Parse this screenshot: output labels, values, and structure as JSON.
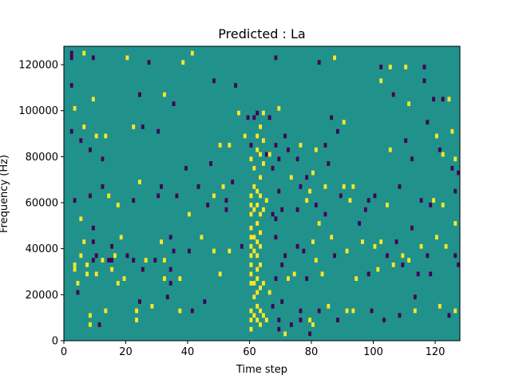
{
  "chart_data": {
    "type": "heatmap",
    "title": "Predicted : La",
    "xlabel": "Time step",
    "ylabel": "Frequency (Hz)",
    "xlim": [
      0,
      128
    ],
    "ylim": [
      0,
      128000
    ],
    "x_ticks": [
      0,
      20,
      40,
      60,
      80,
      100,
      120
    ],
    "y_ticks": [
      0,
      20000,
      40000,
      60000,
      80000,
      100000,
      120000
    ],
    "colormap": "viridis",
    "colors": {
      "background": "#21918c",
      "low": "#440154",
      "high": "#fde725"
    },
    "grid": false,
    "legend": "none",
    "cell_size": {
      "time_steps": 1,
      "frequency_hz": 2000
    },
    "cells": [
      [
        2,
        122000,
        "low"
      ],
      [
        2,
        124000,
        "low"
      ],
      [
        2,
        110000,
        "low"
      ],
      [
        2,
        90000,
        "low"
      ],
      [
        3,
        100000,
        "high"
      ],
      [
        3,
        60000,
        "low"
      ],
      [
        3,
        30000,
        "high"
      ],
      [
        3,
        32000,
        "high"
      ],
      [
        4,
        24000,
        "high"
      ],
      [
        4,
        20000,
        "low"
      ],
      [
        5,
        86000,
        "low"
      ],
      [
        5,
        52000,
        "high"
      ],
      [
        5,
        36000,
        "high"
      ],
      [
        6,
        124000,
        "high"
      ],
      [
        6,
        92000,
        "high"
      ],
      [
        6,
        42000,
        "high"
      ],
      [
        7,
        32000,
        "high"
      ],
      [
        7,
        28000,
        "high"
      ],
      [
        8,
        82000,
        "low"
      ],
      [
        8,
        62000,
        "low"
      ],
      [
        8,
        10000,
        "high"
      ],
      [
        8,
        6000,
        "high"
      ],
      [
        9,
        122000,
        "low"
      ],
      [
        9,
        104000,
        "high"
      ],
      [
        9,
        48000,
        "low"
      ],
      [
        9,
        42000,
        "low"
      ],
      [
        9,
        34000,
        "low"
      ],
      [
        10,
        88000,
        "high"
      ],
      [
        10,
        28000,
        "high"
      ],
      [
        10,
        36000,
        "low"
      ],
      [
        11,
        6000,
        "low"
      ],
      [
        12,
        78000,
        "low"
      ],
      [
        12,
        66000,
        "low"
      ],
      [
        12,
        34000,
        "high"
      ],
      [
        13,
        88000,
        "high"
      ],
      [
        13,
        12000,
        "high"
      ],
      [
        14,
        62000,
        "high"
      ],
      [
        14,
        34000,
        "low"
      ],
      [
        15,
        30000,
        "high"
      ],
      [
        15,
        34000,
        "low"
      ],
      [
        15,
        40000,
        "low"
      ],
      [
        16,
        36000,
        "high"
      ],
      [
        17,
        24000,
        "high"
      ],
      [
        17,
        58000,
        "high"
      ],
      [
        18,
        44000,
        "high"
      ],
      [
        19,
        26000,
        "high"
      ],
      [
        20,
        122000,
        "high"
      ],
      [
        20,
        36000,
        "low"
      ],
      [
        22,
        92000,
        "high"
      ],
      [
        22,
        60000,
        "low"
      ],
      [
        22,
        34000,
        "low"
      ],
      [
        23,
        12000,
        "high"
      ],
      [
        23,
        8000,
        "high"
      ],
      [
        24,
        106000,
        "low"
      ],
      [
        24,
        68000,
        "high"
      ],
      [
        24,
        16000,
        "low"
      ],
      [
        25,
        92000,
        "low"
      ],
      [
        25,
        30000,
        "low"
      ],
      [
        26,
        34000,
        "high"
      ],
      [
        27,
        120000,
        "low"
      ],
      [
        28,
        14000,
        "high"
      ],
      [
        29,
        34000,
        "low"
      ],
      [
        30,
        90000,
        "low"
      ],
      [
        30,
        62000,
        "low"
      ],
      [
        31,
        66000,
        "low"
      ],
      [
        31,
        42000,
        "high"
      ],
      [
        32,
        106000,
        "high"
      ],
      [
        32,
        34000,
        "high"
      ],
      [
        32,
        26000,
        "high"
      ],
      [
        33,
        18000,
        "low"
      ],
      [
        34,
        30000,
        "low"
      ],
      [
        34,
        24000,
        "low"
      ],
      [
        34,
        44000,
        "low"
      ],
      [
        35,
        102000,
        "low"
      ],
      [
        35,
        38000,
        "low"
      ],
      [
        36,
        62000,
        "low"
      ],
      [
        37,
        12000,
        "high"
      ],
      [
        37,
        26000,
        "high"
      ],
      [
        38,
        120000,
        "high"
      ],
      [
        39,
        74000,
        "low"
      ],
      [
        40,
        54000,
        "high"
      ],
      [
        40,
        38000,
        "low"
      ],
      [
        41,
        12000,
        "low"
      ],
      [
        41,
        124000,
        "high"
      ],
      [
        43,
        66000,
        "low"
      ],
      [
        44,
        44000,
        "high"
      ],
      [
        45,
        16000,
        "low"
      ],
      [
        46,
        58000,
        "low"
      ],
      [
        47,
        76000,
        "low"
      ],
      [
        48,
        62000,
        "high"
      ],
      [
        48,
        38000,
        "high"
      ],
      [
        48,
        112000,
        "low"
      ],
      [
        50,
        84000,
        "high"
      ],
      [
        50,
        28000,
        "high"
      ],
      [
        51,
        66000,
        "high"
      ],
      [
        52,
        60000,
        "low"
      ],
      [
        52,
        56000,
        "low"
      ],
      [
        53,
        84000,
        "high"
      ],
      [
        53,
        38000,
        "high"
      ],
      [
        54,
        68000,
        "low"
      ],
      [
        55,
        110000,
        "low"
      ],
      [
        56,
        98000,
        "high"
      ],
      [
        57,
        40000,
        "low"
      ],
      [
        58,
        88000,
        "high"
      ],
      [
        59,
        96000,
        "low"
      ],
      [
        60,
        78000,
        "high"
      ],
      [
        60,
        84000,
        "low"
      ],
      [
        60,
        62000,
        "high"
      ],
      [
        60,
        58000,
        "high"
      ],
      [
        60,
        54000,
        "high"
      ],
      [
        60,
        48000,
        "high"
      ],
      [
        60,
        44000,
        "high"
      ],
      [
        60,
        40000,
        "high"
      ],
      [
        60,
        36000,
        "high"
      ],
      [
        60,
        32000,
        "high"
      ],
      [
        60,
        28000,
        "high"
      ],
      [
        60,
        24000,
        "high"
      ],
      [
        60,
        12000,
        "high"
      ],
      [
        60,
        8000,
        "high"
      ],
      [
        60,
        4000,
        "high"
      ],
      [
        61,
        96000,
        "low"
      ],
      [
        61,
        74000,
        "high"
      ],
      [
        61,
        66000,
        "high"
      ],
      [
        61,
        56000,
        "high"
      ],
      [
        61,
        44000,
        "high"
      ],
      [
        61,
        38000,
        "high"
      ],
      [
        61,
        24000,
        "high"
      ],
      [
        61,
        18000,
        "high"
      ],
      [
        61,
        10000,
        "high"
      ],
      [
        62,
        98000,
        "low"
      ],
      [
        62,
        88000,
        "high"
      ],
      [
        62,
        82000,
        "high"
      ],
      [
        62,
        64000,
        "high"
      ],
      [
        62,
        58000,
        "high"
      ],
      [
        62,
        50000,
        "high"
      ],
      [
        62,
        42000,
        "high"
      ],
      [
        62,
        36000,
        "high"
      ],
      [
        62,
        30000,
        "high"
      ],
      [
        62,
        26000,
        "high"
      ],
      [
        62,
        20000,
        "high"
      ],
      [
        62,
        14000,
        "high"
      ],
      [
        62,
        8000,
        "high"
      ],
      [
        63,
        92000,
        "high"
      ],
      [
        63,
        80000,
        "high"
      ],
      [
        63,
        70000,
        "high"
      ],
      [
        63,
        62000,
        "high"
      ],
      [
        63,
        54000,
        "high"
      ],
      [
        63,
        46000,
        "high"
      ],
      [
        63,
        40000,
        "high"
      ],
      [
        63,
        32000,
        "high"
      ],
      [
        63,
        22000,
        "high"
      ],
      [
        63,
        12000,
        "high"
      ],
      [
        63,
        6000,
        "high"
      ],
      [
        64,
        98000,
        "high"
      ],
      [
        64,
        86000,
        "high"
      ],
      [
        64,
        76000,
        "high"
      ],
      [
        64,
        56000,
        "high"
      ],
      [
        64,
        24000,
        "high"
      ],
      [
        64,
        10000,
        "high"
      ],
      [
        65,
        80000,
        "low"
      ],
      [
        65,
        60000,
        "high"
      ],
      [
        65,
        8000,
        "high"
      ],
      [
        66,
        96000,
        "low"
      ],
      [
        66,
        80000,
        "high"
      ],
      [
        66,
        20000,
        "high"
      ],
      [
        67,
        54000,
        "low"
      ],
      [
        67,
        74000,
        "low"
      ],
      [
        67,
        14000,
        "low"
      ],
      [
        68,
        122000,
        "low"
      ],
      [
        68,
        84000,
        "low"
      ],
      [
        68,
        52000,
        "low"
      ],
      [
        68,
        44000,
        "low"
      ],
      [
        68,
        26000,
        "low"
      ],
      [
        69,
        100000,
        "high"
      ],
      [
        69,
        78000,
        "low"
      ],
      [
        69,
        64000,
        "low"
      ],
      [
        69,
        8000,
        "low"
      ],
      [
        69,
        4000,
        "low"
      ],
      [
        70,
        56000,
        "low"
      ],
      [
        70,
        32000,
        "low"
      ],
      [
        70,
        16000,
        "low"
      ],
      [
        71,
        88000,
        "low"
      ],
      [
        71,
        36000,
        "low"
      ],
      [
        71,
        2000,
        "high"
      ],
      [
        72,
        26000,
        "high"
      ],
      [
        72,
        82000,
        "low"
      ],
      [
        73,
        70000,
        "high"
      ],
      [
        73,
        6000,
        "low"
      ],
      [
        74,
        28000,
        "high"
      ],
      [
        75,
        78000,
        "low"
      ],
      [
        75,
        56000,
        "low"
      ],
      [
        75,
        40000,
        "low"
      ],
      [
        76,
        84000,
        "high"
      ],
      [
        76,
        66000,
        "low"
      ],
      [
        76,
        8000,
        "low"
      ],
      [
        76,
        12000,
        "low"
      ],
      [
        77,
        38000,
        "low"
      ],
      [
        78,
        60000,
        "high"
      ],
      [
        78,
        26000,
        "low"
      ],
      [
        78,
        70000,
        "low"
      ],
      [
        79,
        64000,
        "high"
      ],
      [
        79,
        8000,
        "high"
      ],
      [
        79,
        2000,
        "low"
      ],
      [
        80,
        72000,
        "high"
      ],
      [
        80,
        42000,
        "high"
      ],
      [
        80,
        6000,
        "high"
      ],
      [
        81,
        82000,
        "high"
      ],
      [
        81,
        58000,
        "low"
      ],
      [
        81,
        34000,
        "high"
      ],
      [
        82,
        120000,
        "low"
      ],
      [
        82,
        50000,
        "high"
      ],
      [
        82,
        12000,
        "low"
      ],
      [
        83,
        28000,
        "high"
      ],
      [
        84,
        84000,
        "low"
      ],
      [
        84,
        66000,
        "high"
      ],
      [
        84,
        54000,
        "low"
      ],
      [
        85,
        76000,
        "low"
      ],
      [
        85,
        14000,
        "high"
      ],
      [
        86,
        96000,
        "low"
      ],
      [
        86,
        44000,
        "high"
      ],
      [
        87,
        122000,
        "high"
      ],
      [
        87,
        36000,
        "low"
      ],
      [
        88,
        90000,
        "low"
      ],
      [
        88,
        8000,
        "low"
      ],
      [
        89,
        62000,
        "low"
      ],
      [
        90,
        94000,
        "high"
      ],
      [
        90,
        66000,
        "high"
      ],
      [
        91,
        12000,
        "high"
      ],
      [
        91,
        38000,
        "high"
      ],
      [
        92,
        60000,
        "high"
      ],
      [
        93,
        66000,
        "high"
      ],
      [
        93,
        12000,
        "high"
      ],
      [
        94,
        26000,
        "high"
      ],
      [
        95,
        50000,
        "low"
      ],
      [
        96,
        42000,
        "high"
      ],
      [
        97,
        56000,
        "low"
      ],
      [
        98,
        28000,
        "low"
      ],
      [
        98,
        60000,
        "low"
      ],
      [
        99,
        12000,
        "low"
      ],
      [
        100,
        62000,
        "low"
      ],
      [
        100,
        40000,
        "high"
      ],
      [
        101,
        30000,
        "high"
      ],
      [
        102,
        118000,
        "low"
      ],
      [
        102,
        112000,
        "high"
      ],
      [
        102,
        42000,
        "high"
      ],
      [
        103,
        8000,
        "low"
      ],
      [
        104,
        58000,
        "high"
      ],
      [
        104,
        36000,
        "low"
      ],
      [
        105,
        82000,
        "high"
      ],
      [
        105,
        118000,
        "high"
      ],
      [
        106,
        32000,
        "high"
      ],
      [
        106,
        106000,
        "low"
      ],
      [
        107,
        42000,
        "low"
      ],
      [
        108,
        66000,
        "low"
      ],
      [
        108,
        10000,
        "low"
      ],
      [
        109,
        36000,
        "high"
      ],
      [
        109,
        32000,
        "low"
      ],
      [
        110,
        118000,
        "high"
      ],
      [
        110,
        86000,
        "low"
      ],
      [
        111,
        102000,
        "high"
      ],
      [
        111,
        34000,
        "high"
      ],
      [
        112,
        78000,
        "low"
      ],
      [
        112,
        48000,
        "low"
      ],
      [
        113,
        12000,
        "high"
      ],
      [
        113,
        18000,
        "low"
      ],
      [
        114,
        28000,
        "low"
      ],
      [
        115,
        60000,
        "low"
      ],
      [
        115,
        40000,
        "high"
      ],
      [
        116,
        112000,
        "low"
      ],
      [
        116,
        118000,
        "low"
      ],
      [
        117,
        94000,
        "low"
      ],
      [
        117,
        36000,
        "low"
      ],
      [
        118,
        58000,
        "low"
      ],
      [
        118,
        28000,
        "low"
      ],
      [
        119,
        104000,
        "low"
      ],
      [
        119,
        60000,
        "high"
      ],
      [
        120,
        88000,
        "high"
      ],
      [
        120,
        44000,
        "high"
      ],
      [
        121,
        82000,
        "low"
      ],
      [
        121,
        14000,
        "high"
      ],
      [
        122,
        104000,
        "low"
      ],
      [
        122,
        80000,
        "high"
      ],
      [
        122,
        58000,
        "high"
      ],
      [
        123,
        40000,
        "high"
      ],
      [
        124,
        104000,
        "high"
      ],
      [
        124,
        10000,
        "low"
      ],
      [
        125,
        90000,
        "high"
      ],
      [
        125,
        74000,
        "low"
      ],
      [
        126,
        64000,
        "low"
      ],
      [
        126,
        78000,
        "high"
      ],
      [
        126,
        12000,
        "high"
      ],
      [
        126,
        36000,
        "low"
      ],
      [
        126,
        50000,
        "high"
      ],
      [
        127,
        72000,
        "low"
      ],
      [
        127,
        32000,
        "low"
      ]
    ]
  }
}
